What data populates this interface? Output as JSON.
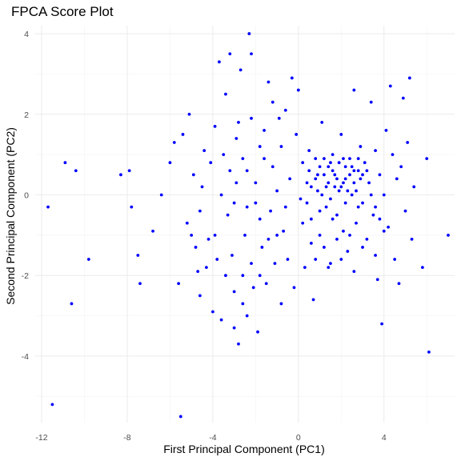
{
  "chart_data": {
    "type": "scatter",
    "title": "FPCA Score Plot",
    "xlabel": "First Principal Component (PC1)",
    "ylabel": "Second Principal Component (PC2)",
    "xlim": [
      -12.3,
      7.3
    ],
    "ylim": [
      -5.65,
      4.2
    ],
    "x_ticks": [
      -12,
      -8,
      -4,
      0,
      4
    ],
    "y_ticks": [
      -4,
      -2,
      0,
      2,
      4
    ],
    "x_minor": [
      -10,
      -6,
      -2,
      2,
      6
    ],
    "y_minor": [
      -5,
      -3,
      -1,
      1,
      3
    ],
    "grid": true,
    "point_color": "#0000ff",
    "points": [
      [
        -11.7,
        -0.3
      ],
      [
        -11.5,
        -5.2
      ],
      [
        -10.9,
        0.8
      ],
      [
        -10.6,
        -2.7
      ],
      [
        -10.4,
        0.6
      ],
      [
        -9.8,
        -1.6
      ],
      [
        -8.3,
        0.5
      ],
      [
        -7.9,
        0.6
      ],
      [
        -7.8,
        -0.3
      ],
      [
        -7.5,
        -1.5
      ],
      [
        -7.4,
        -2.2
      ],
      [
        -5.5,
        -5.5
      ],
      [
        -6.8,
        -0.9
      ],
      [
        -6.4,
        0.0
      ],
      [
        -6.0,
        0.8
      ],
      [
        -5.8,
        1.3
      ],
      [
        -5.6,
        -2.2
      ],
      [
        -5.4,
        1.5
      ],
      [
        -5.1,
        2.0
      ],
      [
        -5.2,
        -0.7
      ],
      [
        -4.9,
        0.5
      ],
      [
        -4.8,
        -1.3
      ],
      [
        -4.6,
        -2.5
      ],
      [
        -4.5,
        0.2
      ],
      [
        -4.3,
        -1.8
      ],
      [
        -4.1,
        0.8
      ],
      [
        -4.0,
        -2.9
      ],
      [
        -3.9,
        -1.0
      ],
      [
        -3.7,
        3.3
      ],
      [
        -3.6,
        -3.1
      ],
      [
        -3.5,
        1.0
      ],
      [
        -3.4,
        2.5
      ],
      [
        -3.3,
        -0.5
      ],
      [
        -3.2,
        3.5
      ],
      [
        -3.1,
        -1.5
      ],
      [
        -3.0,
        -3.3
      ],
      [
        -2.9,
        0.3
      ],
      [
        -2.8,
        1.8
      ],
      [
        -2.7,
        3.1
      ],
      [
        -2.6,
        -2.0
      ],
      [
        -2.5,
        -1.0
      ],
      [
        -2.4,
        0.6
      ],
      [
        -2.3,
        4.0
      ],
      [
        -2.2,
        3.5
      ],
      [
        -2.1,
        -2.3
      ],
      [
        -2.0,
        -0.2
      ],
      [
        -1.9,
        -3.4
      ],
      [
        -1.8,
        1.2
      ],
      [
        -1.7,
        -1.3
      ],
      [
        -1.6,
        0.9
      ],
      [
        -1.5,
        -2.2
      ],
      [
        -1.4,
        2.8
      ],
      [
        -1.3,
        -0.4
      ],
      [
        -1.2,
        2.3
      ],
      [
        -1.1,
        -1.7
      ],
      [
        -1.0,
        0.1
      ],
      [
        -0.9,
        1.9
      ],
      [
        -0.8,
        -2.7
      ],
      [
        -0.7,
        -0.9
      ],
      [
        -0.6,
        2.1
      ],
      [
        -0.5,
        -1.6
      ],
      [
        -0.4,
        0.4
      ],
      [
        -0.3,
        2.9
      ],
      [
        -0.2,
        -2.3
      ],
      [
        -0.1,
        1.5
      ],
      [
        0.0,
        2.6
      ],
      [
        0.1,
        -0.1
      ],
      [
        0.2,
        0.8
      ],
      [
        0.3,
        -1.8
      ],
      [
        0.4,
        0.3
      ],
      [
        0.5,
        1.1
      ],
      [
        0.6,
        -0.6
      ],
      [
        0.7,
        -2.6
      ],
      [
        0.8,
        0.9
      ],
      [
        0.9,
        0.1
      ],
      [
        1.0,
        -1.0
      ],
      [
        1.1,
        1.8
      ],
      [
        1.2,
        0.5
      ],
      [
        1.3,
        -0.3
      ],
      [
        1.4,
        0.7
      ],
      [
        1.5,
        -1.7
      ],
      [
        1.6,
        1.0
      ],
      [
        1.7,
        0.2
      ],
      [
        1.8,
        -0.5
      ],
      [
        1.9,
        0.8
      ],
      [
        2.0,
        1.5
      ],
      [
        2.1,
        -0.9
      ],
      [
        2.2,
        0.4
      ],
      [
        2.3,
        -1.4
      ],
      [
        2.4,
        0.9
      ],
      [
        2.5,
        0.0
      ],
      [
        2.6,
        2.6
      ],
      [
        2.7,
        -0.7
      ],
      [
        2.8,
        0.6
      ],
      [
        2.9,
        1.2
      ],
      [
        3.0,
        -0.2
      ],
      [
        3.1,
        0.8
      ],
      [
        3.2,
        -1.1
      ],
      [
        3.3,
        0.3
      ],
      [
        3.4,
        2.3
      ],
      [
        3.5,
        -0.5
      ],
      [
        3.6,
        1.1
      ],
      [
        3.7,
        -2.1
      ],
      [
        3.8,
        0.5
      ],
      [
        3.9,
        -3.2
      ],
      [
        4.0,
        0.0
      ],
      [
        4.1,
        1.6
      ],
      [
        4.2,
        -0.8
      ],
      [
        4.3,
        2.7
      ],
      [
        4.4,
        1.0
      ],
      [
        4.5,
        -1.6
      ],
      [
        4.6,
        0.4
      ],
      [
        4.7,
        -2.2
      ],
      [
        4.8,
        0.7
      ],
      [
        4.9,
        2.4
      ],
      [
        5.0,
        -0.4
      ],
      [
        5.1,
        1.3
      ],
      [
        5.2,
        2.9
      ],
      [
        5.3,
        -1.1
      ],
      [
        5.4,
        0.2
      ],
      [
        5.8,
        -1.8
      ],
      [
        6.0,
        0.9
      ],
      [
        6.1,
        -3.9
      ],
      [
        7.0,
        -1.0
      ],
      [
        0.5,
        0.6
      ],
      [
        0.8,
        0.4
      ],
      [
        1.0,
        0.7
      ],
      [
        1.2,
        0.9
      ],
      [
        1.4,
        0.3
      ],
      [
        1.6,
        0.6
      ],
      [
        1.8,
        0.4
      ],
      [
        2.0,
        0.2
      ],
      [
        2.2,
        0.7
      ],
      [
        2.4,
        0.5
      ],
      [
        2.6,
        0.3
      ],
      [
        2.8,
        0.9
      ],
      [
        3.0,
        0.5
      ],
      [
        1.1,
        0.0
      ],
      [
        1.3,
        0.2
      ],
      [
        1.5,
        -0.1
      ],
      [
        1.7,
        0.5
      ],
      [
        1.9,
        0.1
      ],
      [
        2.1,
        0.3
      ],
      [
        2.3,
        0.1
      ],
      [
        2.5,
        0.7
      ],
      [
        2.7,
        0.1
      ],
      [
        2.9,
        0.4
      ],
      [
        0.9,
        0.5
      ],
      [
        1.5,
        0.8
      ],
      [
        2.1,
        0.9
      ],
      [
        2.6,
        0.6
      ],
      [
        3.2,
        0.6
      ],
      [
        0.6,
        0.2
      ],
      [
        0.4,
        -0.2
      ],
      [
        1.0,
        -0.4
      ],
      [
        1.6,
        -0.6
      ],
      [
        2.2,
        -0.2
      ],
      [
        2.8,
        -0.3
      ],
      [
        3.4,
        0.0
      ],
      [
        3.6,
        -0.3
      ],
      [
        3.8,
        -0.6
      ],
      [
        4.0,
        -0.9
      ],
      [
        0.2,
        -0.7
      ],
      [
        0.6,
        -1.2
      ],
      [
        1.2,
        -1.3
      ],
      [
        1.8,
        -1.1
      ],
      [
        2.4,
        -1.0
      ],
      [
        3.0,
        -1.3
      ],
      [
        3.6,
        -1.5
      ],
      [
        1.4,
        -1.8
      ],
      [
        2.0,
        -1.6
      ],
      [
        2.6,
        -1.9
      ],
      [
        0.8,
        -1.6
      ],
      [
        -4.6,
        -0.4
      ],
      [
        -4.2,
        -1.1
      ],
      [
        -3.8,
        -1.6
      ],
      [
        -3.4,
        -2.0
      ],
      [
        -3.0,
        -2.4
      ],
      [
        -2.6,
        -2.7
      ],
      [
        -2.2,
        -1.7
      ],
      [
        -1.8,
        -2.0
      ],
      [
        -1.4,
        -1.1
      ],
      [
        -3.6,
        0.0
      ],
      [
        -3.0,
        -0.2
      ],
      [
        -2.4,
        -0.3
      ],
      [
        -1.8,
        -0.6
      ],
      [
        -3.2,
        0.6
      ],
      [
        -2.6,
        0.9
      ],
      [
        -2.0,
        0.3
      ],
      [
        -1.6,
        1.6
      ],
      [
        -2.9,
        1.4
      ],
      [
        -2.2,
        1.9
      ],
      [
        -4.4,
        1.1
      ],
      [
        -3.9,
        1.7
      ],
      [
        -1.2,
        0.7
      ],
      [
        -0.8,
        1.2
      ],
      [
        -1.0,
        -1.0
      ],
      [
        -0.6,
        -0.3
      ],
      [
        -2.8,
        -3.7
      ],
      [
        -2.4,
        -3.0
      ],
      [
        -4.7,
        -1.9
      ],
      [
        -5.0,
        -1.0
      ]
    ]
  }
}
